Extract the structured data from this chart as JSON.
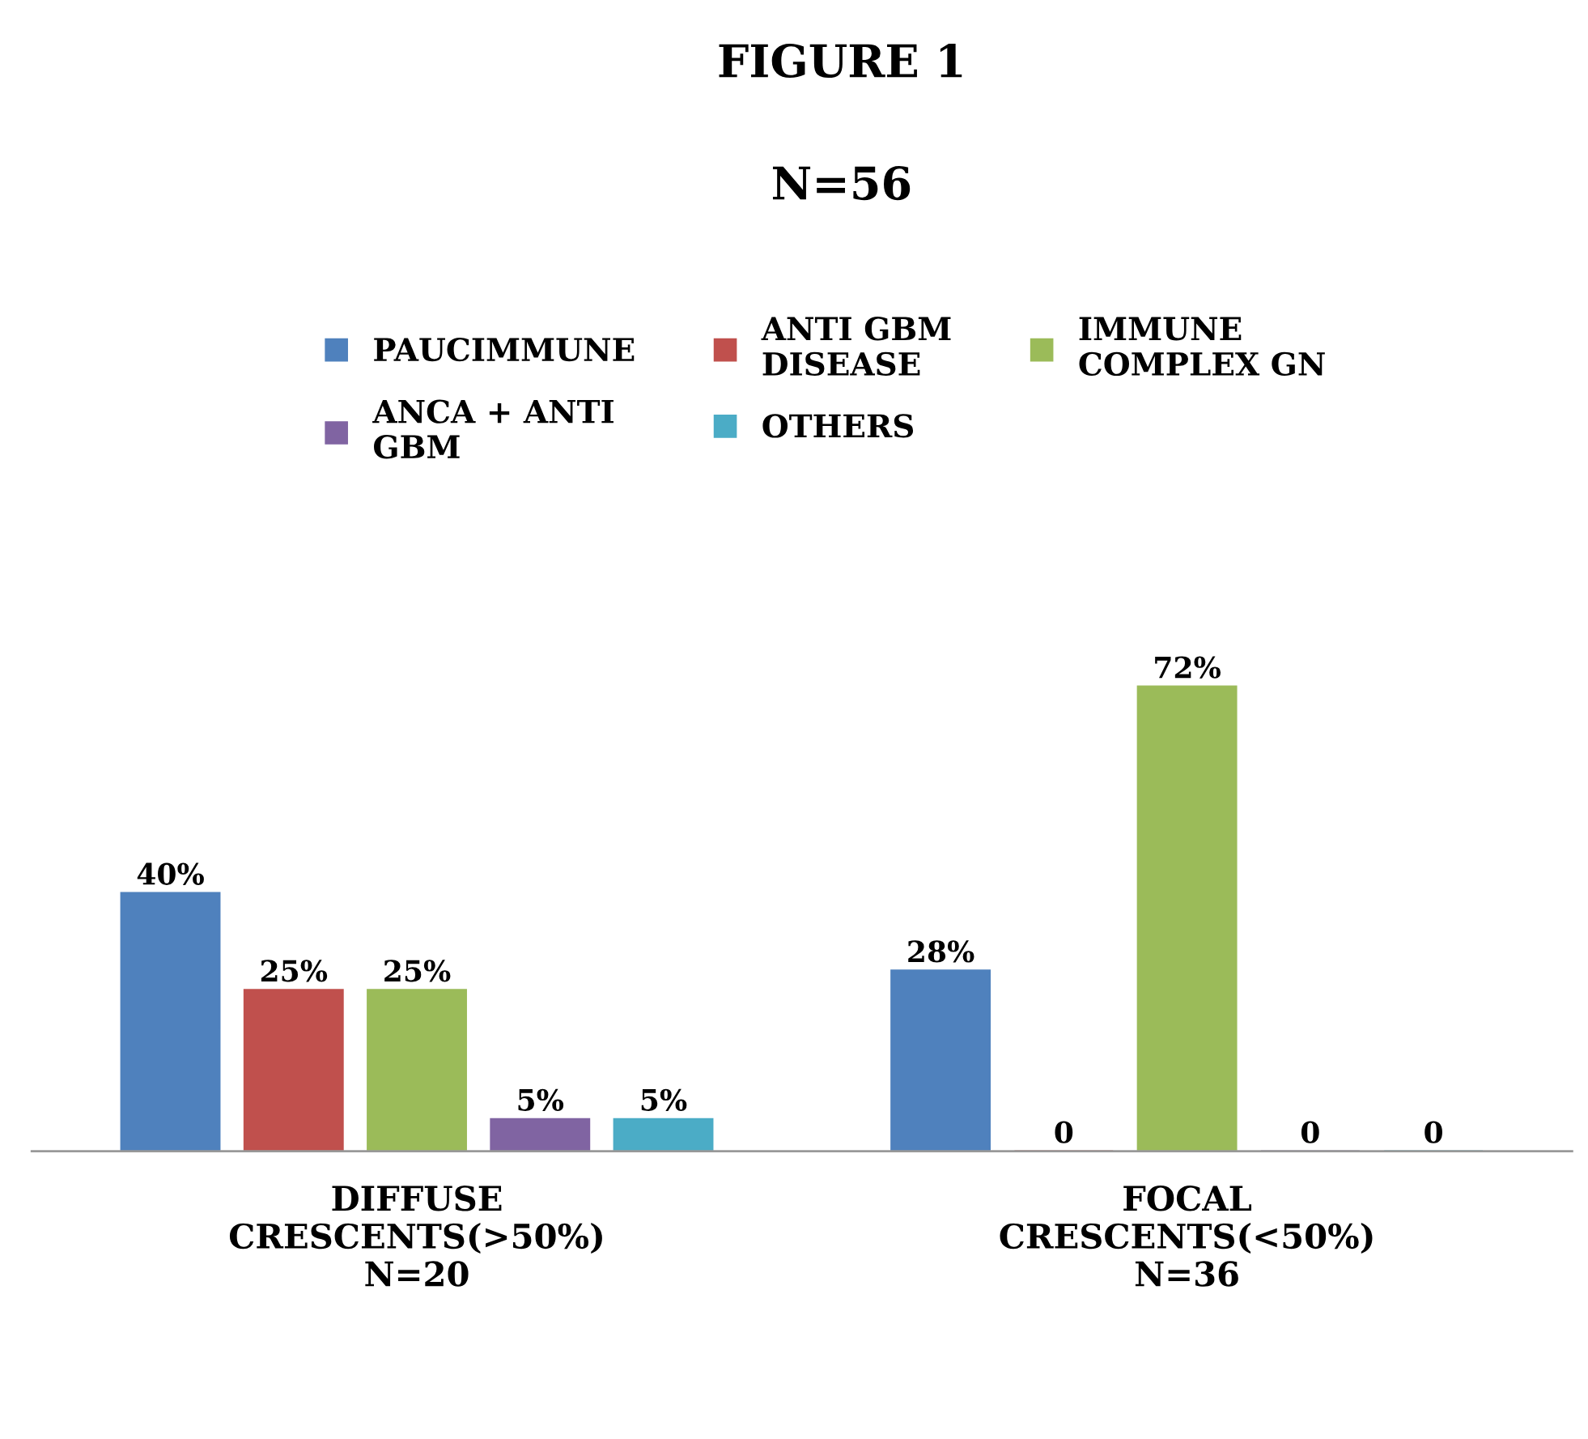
{
  "chart_data": {
    "type": "bar",
    "title": "FIGURE 1",
    "subtitle": "N=56",
    "categories": [
      "DIFFUSE\nCRESCENTS(>50%)\nN=20",
      "FOCAL\nCRESCENTS(<50%)\nN=36"
    ],
    "series": [
      {
        "name": "PAUCIMMUNE",
        "color": "#4f81bd",
        "values": [
          40,
          28
        ],
        "value_labels": [
          "40%",
          "28%"
        ]
      },
      {
        "name": "ANTI GBM\nDISEASE",
        "color": "#c0504d",
        "values": [
          25,
          0
        ],
        "value_labels": [
          "25%",
          "0"
        ]
      },
      {
        "name": "IMMUNE\nCOMPLEX GN",
        "color": "#9bbb59",
        "values": [
          25,
          72
        ],
        "value_labels": [
          "25%",
          "72%"
        ]
      },
      {
        "name": "ANCA + ANTI\nGBM",
        "color": "#8064a2",
        "values": [
          5,
          0
        ],
        "value_labels": [
          "5%",
          "0"
        ]
      },
      {
        "name": "OTHERS",
        "color": "#4bacc6",
        "values": [
          5,
          0
        ],
        "value_labels": [
          "5%",
          "0"
        ]
      }
    ],
    "legend": "top"
  }
}
